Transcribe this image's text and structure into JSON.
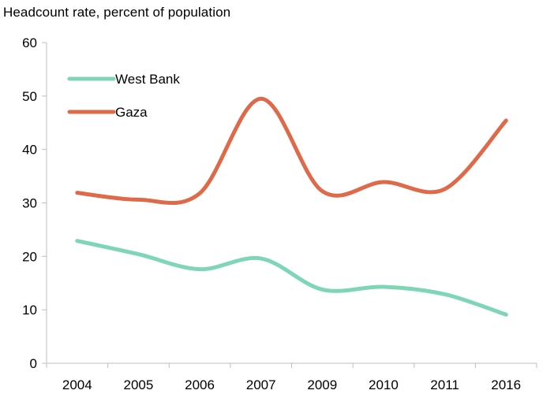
{
  "chart_data": {
    "type": "line",
    "title": "Headcount rate, percent of population",
    "categories": [
      "2004",
      "2005",
      "2006",
      "2007",
      "2009",
      "2010",
      "2011",
      "2016"
    ],
    "series": [
      {
        "name": "West Bank",
        "color": "#7fd6b4",
        "values": [
          22.9,
          20.4,
          17.6,
          19.6,
          13.8,
          14.3,
          12.9,
          9.1
        ]
      },
      {
        "name": "Gaza",
        "color": "#df6a4a",
        "values": [
          31.9,
          30.6,
          31.8,
          49.5,
          32.2,
          33.9,
          32.6,
          45.4
        ]
      }
    ],
    "ylim": [
      0,
      60
    ],
    "yticks": [
      "0",
      "10",
      "20",
      "30",
      "40",
      "50",
      "60"
    ],
    "grid": false,
    "legend_position": "top-left"
  }
}
